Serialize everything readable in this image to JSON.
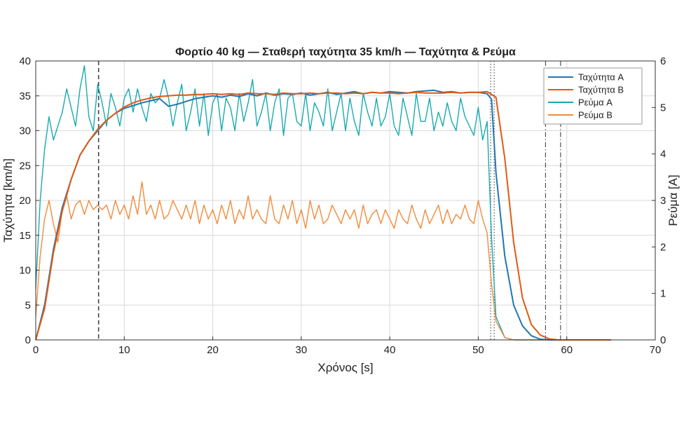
{
  "chart_data": {
    "type": "line",
    "title": "Φορτίο 40 kg — Σταθερή ταχύτητα 35 km/h — Ταχύτητα & Ρεύμα",
    "xlabel": "Χρόνος [s]",
    "ylabel_left": "Ταχύτητα [km/h]",
    "ylabel_right": "Ρεύμα [A]",
    "xlim": [
      0,
      70
    ],
    "ylim_left": [
      0,
      40
    ],
    "ylim_right": [
      0,
      6
    ],
    "x_ticks": [
      "0",
      "10",
      "20",
      "30",
      "40",
      "50",
      "60",
      "70"
    ],
    "y_left_ticks": [
      "0",
      "5",
      "10",
      "15",
      "20",
      "25",
      "30",
      "35",
      "40"
    ],
    "y_right_ticks": [
      "0",
      "1",
      "2",
      "3",
      "4",
      "5",
      "6"
    ],
    "grid": true,
    "legend_position": "top-right",
    "colors": {
      "speed_a": "#1f77b4",
      "speed_b": "#e05a14",
      "current_a": "#17aab0",
      "current_b": "#f28a3a",
      "grid": "#d9d9d9",
      "marker": "#444444"
    },
    "series": [
      {
        "name": "Ταχύτητα A",
        "axis": "left",
        "color": "#1f77b4",
        "x": [
          0,
          1,
          2,
          3,
          4,
          5,
          6,
          7,
          8,
          9,
          10,
          11,
          12,
          13,
          14,
          15,
          16,
          17,
          18,
          19,
          20,
          21,
          22,
          23,
          24,
          25,
          26,
          27,
          28,
          29,
          30,
          31,
          32,
          33,
          34,
          35,
          36,
          37,
          38,
          39,
          40,
          41,
          42,
          43,
          44,
          45,
          46,
          47,
          48,
          49,
          50,
          51,
          51.5,
          52,
          53,
          54,
          55,
          56,
          57,
          58,
          60,
          65
        ],
        "y": [
          0,
          5,
          13,
          19,
          23,
          26.5,
          28.5,
          30,
          31.5,
          32.5,
          33.2,
          33.6,
          34,
          34.3,
          34.6,
          33.5,
          33.8,
          34.2,
          34.6,
          34.8,
          35,
          34.8,
          35.1,
          34.9,
          35.3,
          35,
          35.4,
          35.1,
          35.3,
          35.2,
          35.4,
          35.1,
          35.3,
          35.5,
          35.2,
          35.4,
          35.6,
          35.3,
          35.5,
          35.4,
          35.6,
          35.5,
          35.4,
          35.6,
          35.7,
          35.8,
          35.5,
          35.6,
          35.4,
          35.5,
          35.5,
          35.3,
          34.5,
          24,
          12,
          5,
          2,
          0.6,
          0.1,
          0,
          0,
          0
        ]
      },
      {
        "name": "Ταχύτητα B",
        "axis": "left",
        "color": "#e05a14",
        "x": [
          0,
          1,
          2,
          3,
          4,
          5,
          6,
          7,
          8,
          9,
          10,
          11,
          12,
          13,
          14,
          15,
          16,
          17,
          18,
          19,
          20,
          21,
          22,
          23,
          24,
          25,
          26,
          27,
          28,
          29,
          30,
          31,
          32,
          33,
          34,
          35,
          36,
          37,
          38,
          39,
          40,
          41,
          42,
          43,
          44,
          45,
          46,
          47,
          48,
          49,
          50,
          51,
          52,
          53,
          54,
          55,
          56,
          57,
          58,
          59,
          60,
          65
        ],
        "y": [
          0,
          4.5,
          12.5,
          18.5,
          23,
          26.5,
          28.5,
          30.2,
          31.5,
          32.5,
          33.4,
          34,
          34.4,
          34.7,
          34.9,
          35,
          35.1,
          35.1,
          35.2,
          35.2,
          35.3,
          35.2,
          35.3,
          35.2,
          35.4,
          35.3,
          35.3,
          35.2,
          35.4,
          35.3,
          35.3,
          35.4,
          35.3,
          35.4,
          35.4,
          35.3,
          35.4,
          35.3,
          35.5,
          35.4,
          35.4,
          35.3,
          35.4,
          35.5,
          35.4,
          35.4,
          35.4,
          35.5,
          35.4,
          35.5,
          35.5,
          35.6,
          34.8,
          26,
          14,
          6,
          2.2,
          0.7,
          0.15,
          0,
          0,
          0
        ]
      },
      {
        "name": "Ρεύμα A",
        "axis": "right",
        "color": "#17aab0",
        "x": [
          0,
          0.5,
          1,
          1.5,
          2,
          2.5,
          3,
          3.5,
          4,
          4.5,
          5,
          5.5,
          6,
          6.5,
          7,
          7.5,
          8,
          8.5,
          9,
          9.5,
          10,
          10.5,
          11,
          11.5,
          12,
          12.5,
          13,
          13.5,
          14,
          14.5,
          15,
          15.5,
          16,
          16.5,
          17,
          17.5,
          18,
          18.5,
          19,
          19.5,
          20,
          20.5,
          21,
          21.5,
          22,
          22.5,
          23,
          23.5,
          24,
          24.5,
          25,
          25.5,
          26,
          26.5,
          27,
          27.5,
          28,
          28.5,
          29,
          29.5,
          30,
          30.5,
          31,
          31.5,
          32,
          32.5,
          33,
          33.5,
          34,
          34.5,
          35,
          35.5,
          36,
          36.5,
          37,
          37.5,
          38,
          38.5,
          39,
          39.5,
          40,
          40.5,
          41,
          41.5,
          42,
          42.5,
          43,
          43.5,
          44,
          44.5,
          45,
          45.5,
          46,
          46.5,
          47,
          47.5,
          48,
          48.5,
          49,
          49.5,
          50,
          50.5,
          51,
          51.5,
          52,
          53,
          54,
          60,
          65
        ],
        "y": [
          1.1,
          3.0,
          4.1,
          4.8,
          4.3,
          4.6,
          4.9,
          5.4,
          5.0,
          4.6,
          5.4,
          5.9,
          4.8,
          4.5,
          5.5,
          5.1,
          4.6,
          5.3,
          5.0,
          4.6,
          5.2,
          5.4,
          4.9,
          5.4,
          5.0,
          4.7,
          5.3,
          5.1,
          5.2,
          5.6,
          5.2,
          4.6,
          5.1,
          5.5,
          4.5,
          4.9,
          5.4,
          4.6,
          5.3,
          4.4,
          5.1,
          5.3,
          4.5,
          5.2,
          5.0,
          4.5,
          5.3,
          4.7,
          5.1,
          5.6,
          4.6,
          4.9,
          5.3,
          4.5,
          5.1,
          5.4,
          4.4,
          5.2,
          5.3,
          4.7,
          4.6,
          5.3,
          4.5,
          5.1,
          4.9,
          4.6,
          5.4,
          4.5,
          4.9,
          5.3,
          4.5,
          5.2,
          4.7,
          4.4,
          5.3,
          4.9,
          4.6,
          5.2,
          4.6,
          4.8,
          5.3,
          4.6,
          4.4,
          5.2,
          4.8,
          4.4,
          5.3,
          4.7,
          4.7,
          5.2,
          4.5,
          4.9,
          4.6,
          5.1,
          4.7,
          4.5,
          5.2,
          4.8,
          4.6,
          4.4,
          5.0,
          4.3,
          4.7,
          2.2,
          0.5,
          0.05,
          0,
          0,
          0
        ]
      },
      {
        "name": "Ρεύμα B",
        "axis": "right",
        "color": "#f28a3a",
        "x": [
          0,
          0.5,
          1,
          1.5,
          2,
          2.5,
          3,
          3.5,
          4,
          4.5,
          5,
          5.5,
          6,
          6.5,
          7,
          7.5,
          8,
          8.5,
          9,
          9.5,
          10,
          10.5,
          11,
          11.5,
          12,
          12.5,
          13,
          13.5,
          14,
          14.5,
          15,
          15.5,
          16,
          16.5,
          17,
          17.5,
          18,
          18.5,
          19,
          19.5,
          20,
          20.5,
          21,
          21.5,
          22,
          22.5,
          23,
          23.5,
          24,
          24.5,
          25,
          25.5,
          26,
          26.5,
          27,
          27.5,
          28,
          28.5,
          29,
          29.5,
          30,
          30.5,
          31,
          31.5,
          32,
          32.5,
          33,
          33.5,
          34,
          34.5,
          35,
          35.5,
          36,
          36.5,
          37,
          37.5,
          38,
          38.5,
          39,
          39.5,
          40,
          40.5,
          41,
          41.5,
          42,
          42.5,
          43,
          43.5,
          44,
          44.5,
          45,
          45.5,
          46,
          46.5,
          47,
          47.5,
          48,
          48.5,
          49,
          49.5,
          50,
          50.5,
          51,
          51.5,
          52,
          53,
          54,
          60,
          65
        ],
        "y": [
          0.5,
          1.8,
          2.6,
          3.0,
          2.5,
          2.1,
          2.8,
          3.1,
          2.6,
          2.9,
          3.0,
          2.7,
          3.0,
          2.8,
          2.9,
          2.8,
          2.9,
          2.6,
          3.0,
          2.7,
          2.9,
          2.6,
          3.1,
          2.7,
          3.4,
          2.7,
          2.9,
          2.6,
          3.0,
          2.6,
          2.7,
          3.0,
          2.8,
          2.6,
          2.9,
          2.6,
          3.0,
          2.5,
          2.9,
          2.6,
          2.8,
          2.5,
          2.9,
          2.6,
          3.0,
          2.5,
          2.8,
          2.6,
          3.1,
          2.6,
          2.8,
          2.6,
          2.5,
          3.1,
          2.6,
          2.5,
          2.9,
          2.6,
          3.0,
          2.5,
          2.8,
          2.4,
          3.0,
          2.6,
          2.9,
          2.5,
          2.6,
          2.9,
          2.7,
          2.5,
          2.8,
          2.6,
          2.8,
          2.4,
          2.9,
          2.5,
          2.7,
          2.8,
          2.5,
          2.8,
          2.6,
          2.4,
          2.8,
          2.6,
          2.5,
          2.9,
          2.6,
          2.4,
          2.8,
          2.5,
          2.7,
          2.9,
          2.5,
          2.8,
          2.5,
          2.7,
          2.6,
          2.9,
          2.6,
          2.5,
          3.0,
          2.6,
          2.3,
          1.2,
          0.4,
          0.05,
          0,
          0,
          0
        ]
      }
    ],
    "vertical_markers": [
      {
        "x": 7.1,
        "style": "dashed"
      },
      {
        "x": 51.4,
        "style": "dotted"
      },
      {
        "x": 51.8,
        "style": "dotted"
      },
      {
        "x": 57.6,
        "style": "dashdot"
      },
      {
        "x": 59.3,
        "style": "dashdot"
      }
    ]
  }
}
